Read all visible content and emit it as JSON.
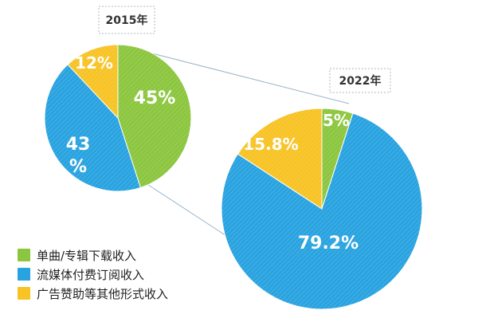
{
  "chart_data": [
    {
      "type": "pie",
      "title": "2015年",
      "categories": [
        "单曲/专辑下载收入",
        "流媒体付费订阅收入",
        "广告赞助等其他形式收入"
      ],
      "values": [
        45,
        43,
        12
      ],
      "data_labels": [
        "45%",
        "43\n%",
        "12%"
      ]
    },
    {
      "type": "pie",
      "title": "2022年",
      "categories": [
        "单曲/专辑下载收入",
        "流媒体付费订阅收入",
        "广告赞助等其他形式收入"
      ],
      "values": [
        5,
        79.2,
        15.8
      ],
      "data_labels": [
        "5%",
        "79.2%",
        "15.8%"
      ]
    }
  ],
  "legend": {
    "items": [
      {
        "label": "单曲/专辑下载收入",
        "color": "#8cc63f"
      },
      {
        "label": "流媒体付费订阅收入",
        "color": "#29a3e0"
      },
      {
        "label": "广告赞助等其他形式收入",
        "color": "#f7c325"
      }
    ],
    "placement": "bottom-left"
  },
  "colors": {
    "download": "#8cc63f",
    "streaming": "#29a3e0",
    "ads": "#f7c325",
    "connector": "#9ab3c6"
  }
}
